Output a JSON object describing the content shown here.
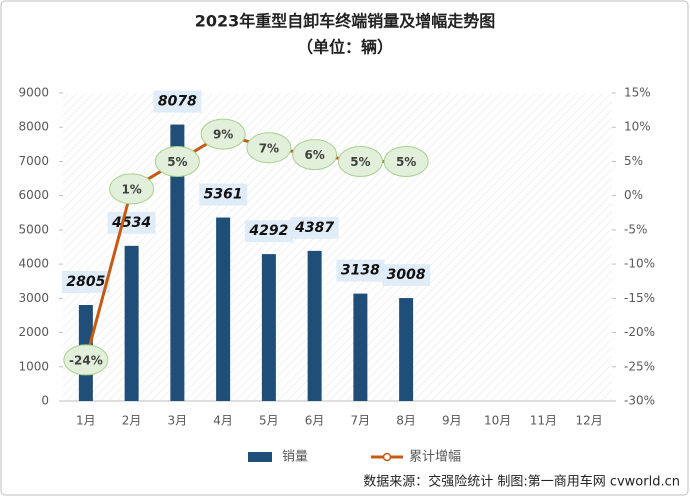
{
  "chart_data": {
    "type": "bar",
    "title": "2023年重型自卸车终端销量及增幅走势图",
    "subtitle": "（单位：辆）",
    "categories": [
      "1月",
      "2月",
      "3月",
      "4月",
      "5月",
      "6月",
      "7月",
      "8月",
      "9月",
      "10月",
      "11月",
      "12月"
    ],
    "series": [
      {
        "name": "销量",
        "color": "#1f4e79",
        "values": [
          2805,
          4534,
          8078,
          5361,
          4292,
          4387,
          3138,
          3008,
          null,
          null,
          null,
          null
        ]
      },
      {
        "name": "累计增幅",
        "type": "line",
        "axis": "y2",
        "color": "#c55a11",
        "values": [
          -24,
          1,
          5,
          9,
          7,
          6,
          5,
          5,
          null,
          null,
          null,
          null
        ],
        "value_labels": [
          "-24%",
          "1%",
          "5%",
          "9%",
          "7%",
          "6%",
          "5%",
          "5%",
          null,
          null,
          null,
          null
        ]
      }
    ],
    "ylim": [
      0,
      9000
    ],
    "yticks": [
      0,
      1000,
      2000,
      3000,
      4000,
      5000,
      6000,
      7000,
      8000,
      9000
    ],
    "y2lim": [
      -30,
      15
    ],
    "y2ticks": [
      {
        "value": -30,
        "label": "-30%"
      },
      {
        "value": -25,
        "label": "-25%"
      },
      {
        "value": -20,
        "label": "-20%"
      },
      {
        "value": -15,
        "label": "-15%"
      },
      {
        "value": -10,
        "label": "-10%"
      },
      {
        "value": -5,
        "label": "-5%"
      },
      {
        "value": 0,
        "label": "0%"
      },
      {
        "value": 5,
        "label": "5%"
      },
      {
        "value": 10,
        "label": "10%"
      },
      {
        "value": 15,
        "label": "15%"
      }
    ],
    "source": "数据来源：交强险统计 制图:第一商用车网 cvworld.cn"
  }
}
